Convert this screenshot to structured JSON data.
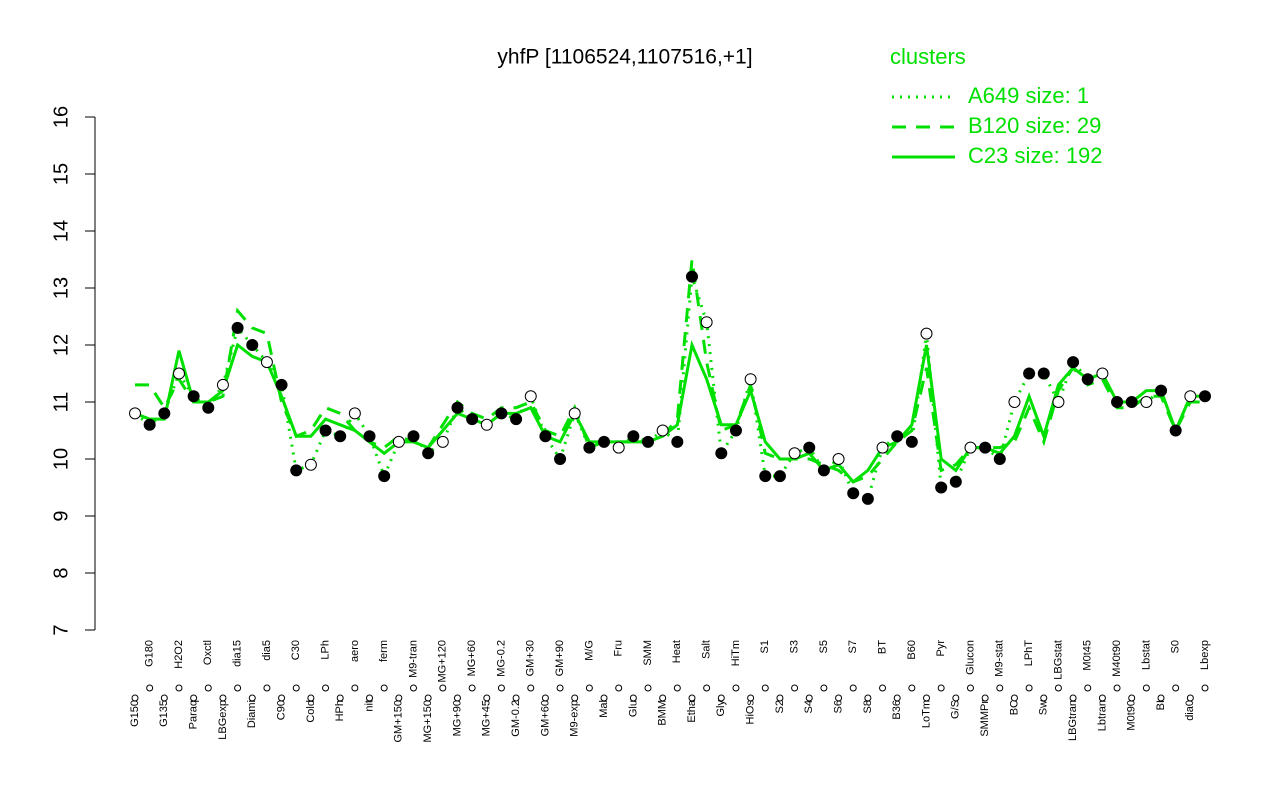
{
  "chart_data": {
    "type": "line",
    "title": "yhfP [1106524,1107516,+1]",
    "legend_title": "clusters",
    "legend_position": "top-right",
    "categories": [
      "G150",
      "G180",
      "G135",
      "H2O2",
      "Paraq",
      "Oxctl",
      "LBGexp",
      "dia15",
      "Diami",
      "dia5",
      "C90",
      "C30",
      "Cold",
      "LPh",
      "HPh",
      "aero",
      "nit",
      "ferm",
      "GM+150",
      "M9-tran",
      "MG+150",
      "MG+120",
      "MG+90",
      "MG+60",
      "MG+45",
      "MG-0.2",
      "GM-0.2",
      "GM+30",
      "GM+60",
      "GM+90",
      "M9-exp",
      "M/G",
      "Mal",
      "Fru",
      "Glu",
      "SMM",
      "BMM",
      "Heat",
      "Etha",
      "Salt",
      "Gly",
      "HiTm",
      "HiOs",
      "S1",
      "S2",
      "S3",
      "S4",
      "S5",
      "S6",
      "S7",
      "S8",
      "BT",
      "B36",
      "B60",
      "LoTm",
      "Pyr",
      "G/S",
      "Glucon",
      "SMMPr",
      "M9-stat",
      "BC",
      "LPhT",
      "Sw",
      "LBGstat",
      "LBGtran",
      "M0t45",
      "Lbtran",
      "M40t90",
      "M0t90",
      "Lbstat",
      "BI",
      "S0",
      "dia0",
      "Lbexp"
    ],
    "values": [
      10.8,
      10.6,
      10.8,
      11.5,
      11.1,
      10.9,
      11.3,
      12.3,
      12.0,
      11.7,
      11.3,
      9.8,
      9.9,
      10.5,
      10.4,
      10.8,
      10.4,
      9.7,
      10.3,
      10.4,
      10.1,
      10.3,
      10.9,
      10.7,
      10.6,
      10.8,
      10.7,
      11.1,
      10.4,
      10.0,
      10.8,
      10.2,
      10.3,
      10.2,
      10.4,
      10.3,
      10.5,
      10.3,
      13.2,
      12.4,
      10.1,
      10.5,
      11.4,
      9.7,
      9.7,
      10.1,
      10.2,
      9.8,
      10.0,
      9.4,
      9.3,
      10.2,
      10.4,
      10.3,
      12.2,
      9.5,
      9.6,
      10.2,
      10.2,
      10.0,
      11.0,
      11.5,
      11.5,
      11.0,
      11.7,
      11.4,
      11.5,
      11.0,
      11.0,
      11.0,
      11.2,
      10.5,
      11.1,
      11.1
    ],
    "series": [
      {
        "name": "A649 size: 1",
        "color": "#00e000",
        "dash": "dotted",
        "values": [
          10.8,
          10.6,
          10.8,
          11.5,
          11.1,
          10.9,
          11.3,
          12.3,
          12.0,
          11.7,
          11.3,
          9.8,
          9.9,
          10.5,
          10.4,
          10.8,
          10.4,
          9.7,
          10.3,
          10.4,
          10.1,
          10.3,
          10.9,
          10.7,
          10.6,
          10.8,
          10.7,
          11.1,
          10.4,
          10.0,
          10.8,
          10.2,
          10.3,
          10.2,
          10.4,
          10.3,
          10.5,
          10.3,
          13.2,
          12.4,
          10.1,
          10.5,
          11.4,
          9.7,
          9.7,
          10.1,
          10.2,
          9.8,
          10.0,
          9.4,
          9.3,
          10.2,
          10.4,
          10.3,
          12.2,
          9.5,
          9.6,
          10.2,
          10.2,
          10.0,
          11.0,
          11.5,
          11.5,
          11.0,
          11.7,
          11.4,
          11.5,
          11.0,
          11.0,
          11.0,
          11.2,
          10.5,
          11.1,
          11.1
        ]
      },
      {
        "name": "B120 size: 29",
        "color": "#00e000",
        "dash": "dashed",
        "values": [
          11.3,
          11.3,
          10.9,
          11.4,
          11.0,
          11.0,
          11.1,
          12.6,
          12.3,
          12.2,
          11.0,
          10.4,
          10.5,
          10.9,
          10.8,
          10.5,
          10.3,
          10.2,
          10.4,
          10.3,
          10.2,
          10.6,
          11.0,
          10.8,
          10.7,
          10.9,
          10.9,
          11.0,
          10.5,
          10.4,
          10.9,
          10.2,
          10.3,
          10.3,
          10.3,
          10.3,
          10.4,
          10.7,
          13.5,
          11.7,
          10.5,
          10.6,
          11.3,
          10.1,
          10.0,
          10.0,
          10.0,
          9.9,
          9.8,
          9.6,
          9.7,
          10.0,
          10.3,
          10.5,
          11.6,
          9.8,
          9.9,
          10.2,
          10.2,
          10.2,
          10.3,
          10.9,
          10.3,
          11.2,
          11.6,
          11.3,
          11.4,
          10.9,
          10.9,
          11.1,
          11.1,
          10.5,
          11.0,
          11.0
        ]
      },
      {
        "name": "C23 size: 192",
        "color": "#00e000",
        "dash": "solid",
        "values": [
          10.8,
          10.7,
          10.7,
          11.9,
          11.0,
          11.0,
          11.2,
          12.0,
          11.8,
          11.7,
          11.1,
          10.4,
          10.4,
          10.7,
          10.6,
          10.5,
          10.3,
          10.1,
          10.3,
          10.3,
          10.2,
          10.5,
          10.8,
          10.7,
          10.6,
          10.8,
          10.8,
          10.9,
          10.4,
          10.3,
          10.8,
          10.3,
          10.3,
          10.3,
          10.3,
          10.3,
          10.4,
          10.6,
          12.0,
          11.4,
          10.6,
          10.6,
          11.2,
          10.3,
          10.0,
          10.0,
          10.1,
          9.8,
          9.9,
          9.6,
          9.8,
          10.2,
          10.3,
          10.6,
          12.0,
          10.0,
          9.8,
          10.2,
          10.2,
          10.1,
          10.4,
          11.1,
          10.4,
          11.3,
          11.6,
          11.4,
          11.5,
          11.0,
          11.0,
          11.2,
          11.2,
          10.5,
          11.1,
          11.1
        ]
      }
    ],
    "ylim": [
      7,
      16
    ],
    "yticks": [
      7,
      8,
      9,
      10,
      11,
      12,
      13,
      14,
      15,
      16
    ]
  }
}
